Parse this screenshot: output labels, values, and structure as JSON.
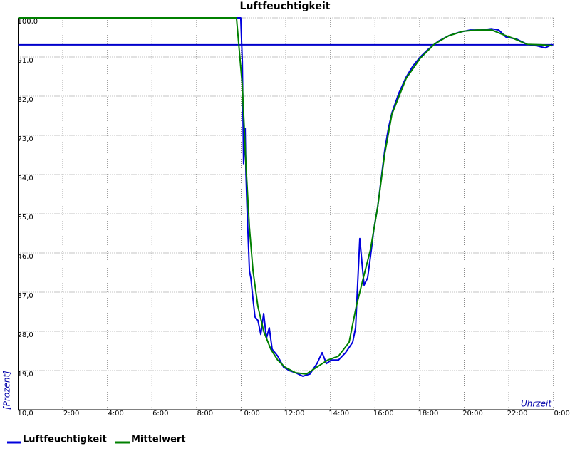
{
  "chart_data": {
    "type": "line",
    "title": "Luftfeuchtigkeit",
    "y_label": "[Prozent]",
    "x_label": "Uhrzeit",
    "xlim": [
      0,
      24
    ],
    "ylim": [
      10,
      100
    ],
    "xticks": [
      {
        "value": 2,
        "label": "2:00"
      },
      {
        "value": 4,
        "label": "4:00"
      },
      {
        "value": 6,
        "label": "6:00"
      },
      {
        "value": 8,
        "label": "8:00"
      },
      {
        "value": 10,
        "label": "10:00"
      },
      {
        "value": 12,
        "label": "12:00"
      },
      {
        "value": 14,
        "label": "14:00"
      },
      {
        "value": 16,
        "label": "16:00"
      },
      {
        "value": 18,
        "label": "18:00"
      },
      {
        "value": 20,
        "label": "20:00"
      },
      {
        "value": 22,
        "label": "22:00"
      },
      {
        "value": 24,
        "label": "0:00"
      }
    ],
    "yticks": [
      {
        "value": 100,
        "label": "100,0"
      },
      {
        "value": 91,
        "label": "91,0"
      },
      {
        "value": 82,
        "label": "82,0"
      },
      {
        "value": 73,
        "label": "73,0"
      },
      {
        "value": 64,
        "label": "64,0"
      },
      {
        "value": 55,
        "label": "55,0"
      },
      {
        "value": 46,
        "label": "46,0"
      },
      {
        "value": 37,
        "label": "37,0"
      },
      {
        "value": 28,
        "label": "28,0"
      },
      {
        "value": 19,
        "label": "19,0"
      },
      {
        "value": 10,
        "label": "10,0"
      }
    ],
    "grid": true,
    "threshold_line": {
      "value": 93.8,
      "color": "#0000cc"
    },
    "series": [
      {
        "name": "Luftfeuchtigkeit",
        "color": "#0000dd",
        "x": [
          0,
          9.89,
          9.98,
          10.05,
          10.11,
          10.18,
          10.21,
          10.27,
          10.37,
          10.43,
          10.53,
          10.62,
          10.75,
          10.88,
          11.01,
          11.13,
          11.26,
          11.39,
          11.64,
          11.9,
          12.16,
          12.44,
          12.76,
          13.08,
          13.4,
          13.63,
          13.82,
          14.04,
          14.36,
          14.68,
          15.0,
          15.13,
          15.22,
          15.32,
          15.42,
          15.51,
          15.67,
          15.8,
          15.96,
          16.12,
          16.28,
          16.44,
          16.6,
          16.76,
          17.08,
          17.4,
          17.71,
          18.03,
          18.35,
          18.83,
          19.31,
          19.79,
          20.27,
          20.75,
          21.23,
          21.55,
          21.87,
          22.35,
          22.83,
          23.31,
          23.63,
          23.95
        ],
        "values": [
          100,
          100,
          100,
          90,
          66.5,
          74.6,
          64.8,
          55,
          41.9,
          40.3,
          35.4,
          31.3,
          30.5,
          27.3,
          32.1,
          26.4,
          28.8,
          23.9,
          22.3,
          19.8,
          19,
          18.5,
          17.7,
          18.2,
          20.6,
          23.1,
          20.6,
          21.4,
          21.4,
          23.1,
          25.5,
          28.8,
          38.6,
          49.3,
          43.6,
          38.6,
          40.3,
          45.2,
          51.8,
          56.6,
          63.2,
          69.7,
          74.6,
          78.2,
          82.8,
          86.4,
          89,
          91,
          92.6,
          94.6,
          95.9,
          96.7,
          97.2,
          97.2,
          97.5,
          97.2,
          95.6,
          95.1,
          93.9,
          93.5,
          93.1,
          93.9
        ]
      },
      {
        "name": "Mittelwert",
        "color": "#008000",
        "x": [
          0,
          9.79,
          10.05,
          10.21,
          10.37,
          10.53,
          10.75,
          11.01,
          11.33,
          11.64,
          11.96,
          12.44,
          12.92,
          13.4,
          13.88,
          14.36,
          14.84,
          15.16,
          15.48,
          15.8,
          16.12,
          16.44,
          16.76,
          17.4,
          18.03,
          18.67,
          19.31,
          19.95,
          20.59,
          21.23,
          21.71,
          22.19,
          22.83,
          23.47,
          23.95
        ],
        "values": [
          100,
          100,
          84.5,
          66.5,
          51.8,
          41.9,
          33.7,
          28,
          23.9,
          21.4,
          19.8,
          18.5,
          18.2,
          19.8,
          21.4,
          22.3,
          25.5,
          33.7,
          40.3,
          46.8,
          56.6,
          68.9,
          77.9,
          86.1,
          90.7,
          94,
          95.9,
          96.9,
          97.2,
          97.2,
          96.2,
          95.3,
          93.9,
          93.8,
          93.6
        ]
      }
    ]
  }
}
